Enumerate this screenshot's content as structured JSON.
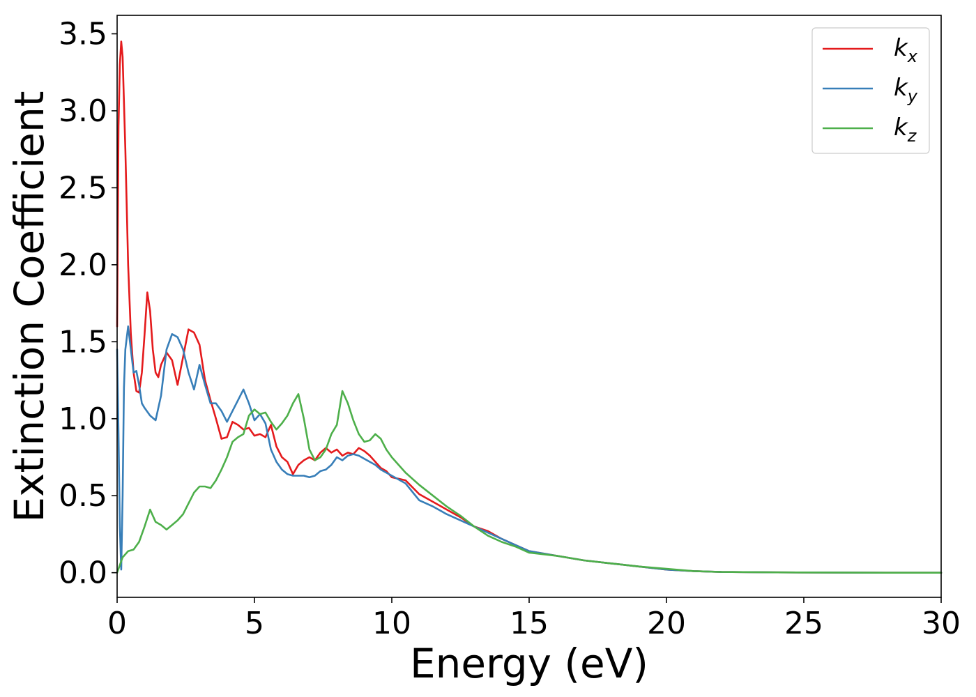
{
  "chart_data": {
    "type": "line",
    "xlabel": "Energy (eV)",
    "ylabel": "Extinction Coefficient",
    "xlim": [
      0,
      30
    ],
    "ylim": [
      -0.16,
      3.62
    ],
    "xticks": [
      0,
      5,
      10,
      15,
      20,
      25,
      30
    ],
    "xtick_labels": [
      "0",
      "5",
      "10",
      "15",
      "20",
      "25",
      "30"
    ],
    "yticks": [
      0.0,
      0.5,
      1.0,
      1.5,
      2.0,
      2.5,
      3.0,
      3.5
    ],
    "ytick_labels": [
      "0.0",
      "0.5",
      "1.0",
      "1.5",
      "2.0",
      "2.5",
      "3.0",
      "3.5"
    ],
    "grid": false,
    "legend_position": "top-right",
    "series": [
      {
        "name": "k_x",
        "label_base": "k",
        "label_sub": "x",
        "color": "#e41a1c",
        "x": [
          0,
          0.05,
          0.1,
          0.15,
          0.2,
          0.3,
          0.4,
          0.5,
          0.6,
          0.7,
          0.8,
          0.9,
          1.0,
          1.1,
          1.2,
          1.3,
          1.4,
          1.5,
          1.6,
          1.8,
          2.0,
          2.2,
          2.4,
          2.6,
          2.8,
          3.0,
          3.2,
          3.4,
          3.6,
          3.8,
          4.0,
          4.2,
          4.4,
          4.6,
          4.8,
          5.0,
          5.2,
          5.4,
          5.6,
          5.8,
          6.0,
          6.2,
          6.4,
          6.6,
          6.8,
          7.0,
          7.2,
          7.4,
          7.6,
          7.8,
          8.0,
          8.2,
          8.4,
          8.6,
          8.8,
          9.0,
          9.2,
          9.4,
          9.6,
          9.8,
          10.0,
          10.5,
          11.0,
          11.5,
          12.0,
          12.5,
          13.0,
          13.5,
          14.0,
          14.5,
          15.0,
          16.0,
          17.0,
          18.0,
          19.0,
          20.0,
          21.0,
          22.0,
          24.0,
          26.0,
          28.0,
          30.0
        ],
        "values": [
          1.6,
          2.9,
          3.3,
          3.45,
          3.35,
          2.75,
          2.0,
          1.55,
          1.3,
          1.18,
          1.17,
          1.3,
          1.55,
          1.82,
          1.7,
          1.45,
          1.3,
          1.27,
          1.35,
          1.43,
          1.38,
          1.22,
          1.4,
          1.58,
          1.56,
          1.48,
          1.25,
          1.12,
          1.0,
          0.87,
          0.88,
          0.98,
          0.96,
          0.93,
          0.94,
          0.89,
          0.9,
          0.88,
          0.96,
          0.82,
          0.75,
          0.72,
          0.64,
          0.7,
          0.73,
          0.75,
          0.73,
          0.78,
          0.81,
          0.78,
          0.8,
          0.76,
          0.78,
          0.77,
          0.81,
          0.79,
          0.76,
          0.72,
          0.68,
          0.66,
          0.62,
          0.6,
          0.51,
          0.46,
          0.41,
          0.36,
          0.3,
          0.27,
          0.22,
          0.18,
          0.14,
          0.11,
          0.08,
          0.06,
          0.04,
          0.02,
          0.01,
          0.005,
          0.002,
          0.001,
          0.0,
          0.0
        ]
      },
      {
        "name": "k_y",
        "label_base": "k",
        "label_sub": "y",
        "color": "#377eb8",
        "x": [
          0,
          0.05,
          0.1,
          0.15,
          0.2,
          0.25,
          0.3,
          0.4,
          0.5,
          0.6,
          0.7,
          0.8,
          0.9,
          1.0,
          1.2,
          1.4,
          1.6,
          1.8,
          2.0,
          2.2,
          2.4,
          2.6,
          2.8,
          3.0,
          3.2,
          3.4,
          3.6,
          3.8,
          4.0,
          4.2,
          4.4,
          4.6,
          4.8,
          5.0,
          5.2,
          5.4,
          5.6,
          5.8,
          6.0,
          6.2,
          6.4,
          6.6,
          6.8,
          7.0,
          7.2,
          7.4,
          7.6,
          7.8,
          8.0,
          8.2,
          8.4,
          8.6,
          8.8,
          9.0,
          9.2,
          9.4,
          9.6,
          9.8,
          10.0,
          10.5,
          11.0,
          11.5,
          12.0,
          12.5,
          13.0,
          13.5,
          14.0,
          14.5,
          15.0,
          16.0,
          17.0,
          18.0,
          19.0,
          20.0,
          21.0,
          22.0,
          24.0,
          26.0,
          28.0,
          30.0
        ],
        "values": [
          1.45,
          0.9,
          0.3,
          0.02,
          0.5,
          1.2,
          1.45,
          1.6,
          1.45,
          1.3,
          1.31,
          1.22,
          1.1,
          1.07,
          1.02,
          0.99,
          1.15,
          1.45,
          1.55,
          1.53,
          1.45,
          1.3,
          1.19,
          1.35,
          1.22,
          1.1,
          1.1,
          1.05,
          0.98,
          1.05,
          1.12,
          1.19,
          1.1,
          0.99,
          1.03,
          0.97,
          0.8,
          0.72,
          0.67,
          0.64,
          0.63,
          0.63,
          0.63,
          0.62,
          0.63,
          0.66,
          0.67,
          0.7,
          0.75,
          0.73,
          0.76,
          0.77,
          0.76,
          0.74,
          0.72,
          0.7,
          0.67,
          0.65,
          0.63,
          0.58,
          0.47,
          0.43,
          0.38,
          0.34,
          0.3,
          0.26,
          0.22,
          0.18,
          0.14,
          0.11,
          0.08,
          0.06,
          0.04,
          0.02,
          0.01,
          0.005,
          0.002,
          0.001,
          0.0,
          0.0
        ]
      },
      {
        "name": "k_z",
        "label_base": "k",
        "label_sub": "z",
        "color": "#4daf4a",
        "x": [
          0,
          0.2,
          0.4,
          0.6,
          0.8,
          1.0,
          1.2,
          1.4,
          1.6,
          1.8,
          2.0,
          2.2,
          2.4,
          2.6,
          2.8,
          3.0,
          3.2,
          3.4,
          3.6,
          3.8,
          4.0,
          4.2,
          4.4,
          4.6,
          4.8,
          5.0,
          5.2,
          5.4,
          5.6,
          5.8,
          6.0,
          6.2,
          6.4,
          6.6,
          6.8,
          7.0,
          7.2,
          7.4,
          7.6,
          7.8,
          8.0,
          8.2,
          8.4,
          8.6,
          8.8,
          9.0,
          9.2,
          9.4,
          9.6,
          9.8,
          10.0,
          10.5,
          11.0,
          11.5,
          12.0,
          12.5,
          13.0,
          13.5,
          14.0,
          14.5,
          15.0,
          16.0,
          17.0,
          18.0,
          19.0,
          20.0,
          21.0,
          22.0,
          24.0,
          26.0,
          28.0,
          30.0
        ],
        "values": [
          0.0,
          0.1,
          0.14,
          0.15,
          0.2,
          0.3,
          0.41,
          0.33,
          0.31,
          0.28,
          0.31,
          0.34,
          0.38,
          0.45,
          0.52,
          0.56,
          0.56,
          0.55,
          0.6,
          0.67,
          0.75,
          0.85,
          0.88,
          0.9,
          1.02,
          1.06,
          1.03,
          1.04,
          0.98,
          0.93,
          0.97,
          1.02,
          1.1,
          1.16,
          1.0,
          0.8,
          0.73,
          0.75,
          0.8,
          0.9,
          0.96,
          1.18,
          1.1,
          0.99,
          0.9,
          0.85,
          0.86,
          0.9,
          0.87,
          0.8,
          0.75,
          0.65,
          0.57,
          0.5,
          0.43,
          0.37,
          0.3,
          0.24,
          0.2,
          0.17,
          0.13,
          0.11,
          0.08,
          0.06,
          0.04,
          0.025,
          0.01,
          0.005,
          0.002,
          0.001,
          0.0,
          0.0
        ]
      }
    ]
  }
}
